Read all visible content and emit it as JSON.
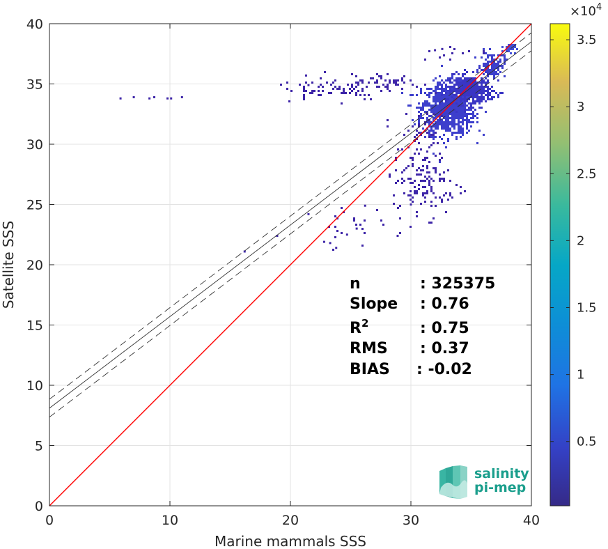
{
  "chart_data": {
    "type": "heatmap",
    "xlabel": "Marine mammals SSS",
    "ylabel": "Satellite SSS",
    "xlim": [
      0,
      40
    ],
    "ylim": [
      0,
      40
    ],
    "x_ticks": [
      "0",
      "10",
      "20",
      "30",
      "40"
    ],
    "y_ticks": [
      "0",
      "5",
      "10",
      "15",
      "20",
      "25",
      "30",
      "35",
      "40"
    ],
    "grid": true,
    "identity_line": {
      "color": "#ff0000",
      "x": [
        0,
        40
      ],
      "y": [
        0,
        40
      ]
    },
    "regression": {
      "slope": 0.76,
      "intercept": 8.1,
      "offset": 0.74
    },
    "stats": [
      {
        "label": "n",
        "value": ": 325375"
      },
      {
        "label": "Slope",
        "value": ": 0.76"
      },
      {
        "label": "R",
        "sup": "2",
        "value": ": 0.75"
      },
      {
        "label": "RMS",
        "value": ": 0.37"
      },
      {
        "label": "BIAS",
        "value": ": -0.02"
      }
    ],
    "colorbar": {
      "min": 0,
      "max": 36000,
      "ticks": [
        "0.5",
        "1",
        "1.5",
        "2",
        "2.5",
        "3",
        "3.5"
      ],
      "tick_values": [
        0.5,
        1,
        1.5,
        2,
        2.5,
        3,
        3.5
      ],
      "range_scaled": [
        0.02,
        3.62
      ],
      "exponent_label": "×10",
      "exponent": "4",
      "colormap": "parula"
    },
    "density_clusters": [
      {
        "x": 33.0,
        "y": 33.0,
        "sx": 1.1,
        "sy": 1.1,
        "n": 900,
        "color": "#3d3fcc"
      },
      {
        "x": 34.8,
        "y": 34.6,
        "sx": 0.9,
        "sy": 0.6,
        "n": 450,
        "color": "#3a35c4"
      },
      {
        "x": 36.7,
        "y": 36.7,
        "sx": 0.5,
        "sy": 0.5,
        "n": 120,
        "color": "#3d3fcc"
      },
      {
        "x": 38.1,
        "y": 38.1,
        "sx": 0.25,
        "sy": 0.2,
        "n": 40,
        "color": "#4450d8"
      },
      {
        "x": 30.5,
        "y": 28.0,
        "sx": 1.0,
        "sy": 2.2,
        "n": 140,
        "color": "#3e26a8"
      },
      {
        "x": 32.0,
        "y": 26.5,
        "sx": 1.2,
        "sy": 1.2,
        "n": 40,
        "color": "#3e26a8"
      },
      {
        "x": 23.5,
        "y": 34.7,
        "sx": 2.2,
        "sy": 0.5,
        "n": 70,
        "color": "#3e26a8"
      },
      {
        "x": 27.8,
        "y": 35.2,
        "sx": 1.5,
        "sy": 0.4,
        "n": 60,
        "color": "#3e26a8"
      },
      {
        "x": 34.5,
        "y": 37.6,
        "sx": 2.0,
        "sy": 0.3,
        "n": 14,
        "color": "#3e26a8"
      },
      {
        "x": 25.0,
        "y": 23.5,
        "sx": 1.5,
        "sy": 1.0,
        "n": 22,
        "color": "#3e26a8"
      }
    ],
    "sparse_points": [
      {
        "x": 5.9,
        "y": 33.8
      },
      {
        "x": 7.0,
        "y": 33.9
      },
      {
        "x": 8.3,
        "y": 33.8
      },
      {
        "x": 8.7,
        "y": 33.9
      },
      {
        "x": 9.8,
        "y": 33.8
      },
      {
        "x": 10.1,
        "y": 33.8
      },
      {
        "x": 11.0,
        "y": 33.9
      },
      {
        "x": 21.3,
        "y": 35.7
      },
      {
        "x": 21.5,
        "y": 34.9
      },
      {
        "x": 22.8,
        "y": 21.9
      },
      {
        "x": 23.3,
        "y": 21.8
      },
      {
        "x": 23.8,
        "y": 21.4
      },
      {
        "x": 24.7,
        "y": 22.5
      },
      {
        "x": 21.5,
        "y": 24.2
      },
      {
        "x": 18.9,
        "y": 22.4
      },
      {
        "x": 16.2,
        "y": 21.1
      },
      {
        "x": 25.5,
        "y": 23.0
      },
      {
        "x": 26.2,
        "y": 24.9
      },
      {
        "x": 28.9,
        "y": 22.4
      },
      {
        "x": 30.0,
        "y": 25.0
      },
      {
        "x": 32.0,
        "y": 37.8
      },
      {
        "x": 32.6,
        "y": 37.9
      }
    ]
  },
  "logo": {
    "line1": "salinity",
    "line2": "pi-mep"
  }
}
